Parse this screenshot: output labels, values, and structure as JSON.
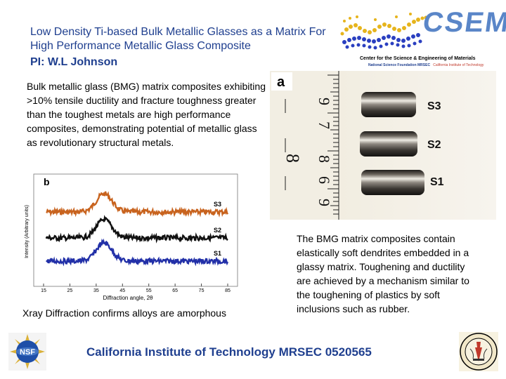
{
  "title": "Low Density Ti-based Bulk Metallic Glasses as a Matrix For High Performance Metallic Glass Composite",
  "pi": "PI: W.L Johnson",
  "logo": {
    "wordmark": "CSEM",
    "line1": "Center for the Science & Engineering of Materials",
    "line2_nsf": "National Science Foundation MRSEC",
    "line2_caltech": "California Institute of Technology"
  },
  "paragraph1": "Bulk metallic glass (BMG) matrix composites exhibiting >10% tensile ductility and fracture toughness greater than the toughest metals are high performance composites, demonstrating potential of metallic glass as revolutionary structural metals.",
  "photo": {
    "panel_label": "a",
    "ruler_digits": [
      "9",
      "7",
      "8",
      "6",
      "8",
      "9"
    ],
    "samples": [
      "S3",
      "S2",
      "S1"
    ]
  },
  "xrd": {
    "panel_label": "b",
    "ylabel": "Intensity (Arbitrary units)",
    "xlabel": "Diffraction angle, 2θ",
    "xticks": [
      "15",
      "25",
      "35",
      "45",
      "55",
      "65",
      "75",
      "85"
    ],
    "xlim": [
      15,
      85
    ],
    "series": [
      {
        "name": "S3",
        "color": "#c8631e",
        "offset": 2.0
      },
      {
        "name": "S2",
        "color": "#111111",
        "offset": 1.0
      },
      {
        "name": "S1",
        "color": "#2230a8",
        "offset": 0.0
      }
    ],
    "peak_position": 38
  },
  "xrd_caption": "Xray Diffraction confirms alloys are amorphous",
  "paragraph2": "The BMG matrix composites contain elastically soft dendrites embedded in a glassy matrix. Toughening and ductility are achieved by a mechanism similar to the toughening of plastics by soft inclusions such as rubber.",
  "footer": "California Institute of Technology MRSEC 0520565",
  "colors": {
    "accent": "#1f3f8f",
    "logo_blue": "#5a86c8",
    "s3": "#c8631e",
    "s1": "#2230a8"
  },
  "nsf_logo_text": "NSF",
  "caltech_seal_text": "CALIFORNIA INSTITUTE OF TECHNOLOGY 1891"
}
